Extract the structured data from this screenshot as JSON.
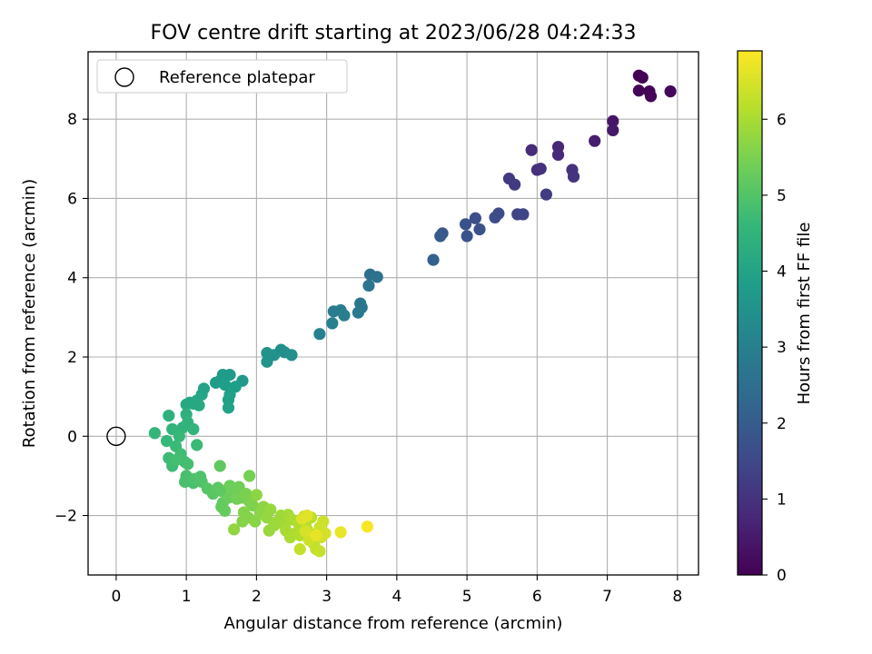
{
  "chart_data": {
    "type": "scatter",
    "title": "FOV centre drift starting at 2023/06/28 04:24:33",
    "xlabel": "Angular distance from reference (arcmin)",
    "ylabel": "Rotation from reference (arcmin)",
    "xlim": [
      -0.4,
      8.3
    ],
    "ylim": [
      -3.5,
      9.7
    ],
    "xticks": [
      0,
      1,
      2,
      3,
      4,
      5,
      6,
      7,
      8
    ],
    "yticks": [
      -2,
      0,
      2,
      4,
      6,
      8
    ],
    "ytick_labels": [
      "−2",
      "0",
      "2",
      "4",
      "6",
      "8"
    ],
    "grid": true,
    "legend": {
      "position": "top-left",
      "entries": [
        "Reference platepar"
      ]
    },
    "colorbar": {
      "label": "Hours from first FF file",
      "colormap": "viridis",
      "range": [
        0,
        6.9
      ],
      "ticks": [
        0,
        1,
        2,
        3,
        4,
        5,
        6
      ]
    },
    "reference_point": {
      "x": 0,
      "y": 0,
      "name": "Reference platepar"
    },
    "points": [
      [
        7.45,
        9.1,
        0.0
      ],
      [
        7.5,
        9.05,
        0.02
      ],
      [
        7.45,
        8.72,
        0.05
      ],
      [
        7.6,
        8.7,
        0.08
      ],
      [
        7.62,
        8.58,
        0.1
      ],
      [
        7.9,
        8.7,
        0.12
      ],
      [
        7.08,
        7.95,
        0.4
      ],
      [
        7.08,
        7.72,
        0.45
      ],
      [
        6.82,
        7.45,
        0.55
      ],
      [
        6.3,
        7.3,
        0.75
      ],
      [
        6.3,
        7.1,
        0.8
      ],
      [
        5.92,
        7.22,
        0.85
      ],
      [
        6.0,
        6.72,
        0.95
      ],
      [
        6.05,
        6.75,
        0.98
      ],
      [
        6.5,
        6.72,
        1.0
      ],
      [
        6.52,
        6.55,
        1.05
      ],
      [
        5.6,
        6.5,
        1.15
      ],
      [
        5.68,
        6.35,
        1.2
      ],
      [
        6.13,
        6.1,
        1.25
      ],
      [
        5.72,
        5.6,
        1.4
      ],
      [
        5.8,
        5.6,
        1.45
      ],
      [
        5.45,
        5.62,
        1.55
      ],
      [
        5.4,
        5.52,
        1.6
      ],
      [
        5.12,
        5.5,
        1.65
      ],
      [
        5.18,
        5.22,
        1.7
      ],
      [
        4.98,
        5.35,
        1.75
      ],
      [
        5.0,
        5.05,
        1.8
      ],
      [
        4.65,
        5.12,
        1.9
      ],
      [
        4.62,
        5.05,
        1.95
      ],
      [
        4.52,
        4.45,
        2.1
      ],
      [
        3.62,
        4.08,
        2.55
      ],
      [
        3.72,
        4.02,
        2.6
      ],
      [
        3.6,
        3.8,
        2.65
      ],
      [
        3.48,
        3.35,
        2.75
      ],
      [
        3.5,
        3.25,
        2.78
      ],
      [
        3.45,
        3.12,
        2.8
      ],
      [
        3.1,
        3.15,
        2.9
      ],
      [
        3.2,
        3.18,
        2.92
      ],
      [
        3.25,
        3.05,
        2.95
      ],
      [
        3.08,
        2.85,
        3.0
      ],
      [
        2.9,
        2.58,
        3.05
      ],
      [
        2.4,
        2.12,
        3.4
      ],
      [
        2.35,
        2.18,
        3.42
      ],
      [
        2.5,
        2.05,
        3.45
      ],
      [
        2.25,
        2.05,
        3.48
      ],
      [
        2.15,
        2.1,
        3.5
      ],
      [
        2.15,
        1.88,
        3.52
      ],
      [
        1.8,
        1.4,
        3.7
      ],
      [
        1.62,
        1.55,
        3.72
      ],
      [
        1.52,
        1.55,
        3.75
      ],
      [
        1.48,
        1.4,
        3.78
      ],
      [
        1.42,
        1.35,
        3.8
      ],
      [
        1.55,
        1.3,
        3.82
      ],
      [
        1.7,
        1.25,
        3.85
      ],
      [
        1.62,
        1.05,
        3.88
      ],
      [
        1.6,
        0.92,
        3.92
      ],
      [
        1.6,
        0.72,
        3.95
      ],
      [
        1.25,
        1.2,
        4.0
      ],
      [
        1.22,
        1.05,
        4.05
      ],
      [
        1.15,
        0.9,
        4.08
      ],
      [
        1.1,
        0.82,
        4.1
      ],
      [
        1.05,
        0.85,
        4.12
      ],
      [
        1.0,
        0.8,
        4.15
      ],
      [
        1.18,
        0.78,
        4.18
      ],
      [
        1.0,
        0.55,
        4.35
      ],
      [
        0.75,
        0.52,
        4.4
      ],
      [
        1.02,
        0.35,
        4.45
      ],
      [
        0.95,
        0.22,
        4.48
      ],
      [
        0.8,
        0.18,
        4.5
      ],
      [
        1.1,
        0.18,
        4.52
      ],
      [
        0.55,
        0.08,
        4.55
      ],
      [
        0.72,
        -0.12,
        4.6
      ],
      [
        0.9,
        0.0,
        4.62
      ],
      [
        0.85,
        -0.25,
        4.65
      ],
      [
        1.15,
        -0.22,
        4.68
      ],
      [
        0.75,
        -0.55,
        4.7
      ],
      [
        0.8,
        -0.75,
        4.72
      ],
      [
        0.92,
        -0.45,
        4.75
      ],
      [
        0.98,
        -0.65,
        4.78
      ],
      [
        1.02,
        -0.7,
        4.8
      ],
      [
        0.85,
        -0.6,
        4.82
      ],
      [
        1.0,
        -1.0,
        4.85
      ],
      [
        0.98,
        -1.15,
        4.88
      ],
      [
        1.1,
        -1.18,
        4.9
      ],
      [
        1.12,
        -1.08,
        4.92
      ],
      [
        1.2,
        -1.02,
        4.95
      ],
      [
        1.22,
        -1.15,
        4.98
      ],
      [
        1.3,
        -1.32,
        5.05
      ],
      [
        1.38,
        -1.45,
        5.1
      ],
      [
        1.45,
        -1.3,
        5.12
      ],
      [
        1.5,
        -1.38,
        5.15
      ],
      [
        1.48,
        -0.75,
        5.18
      ],
      [
        1.52,
        -1.68,
        5.2
      ],
      [
        1.5,
        -1.78,
        5.22
      ],
      [
        1.55,
        -1.88,
        5.25
      ],
      [
        1.6,
        -1.55,
        5.3
      ],
      [
        1.62,
        -1.25,
        5.32
      ],
      [
        1.7,
        -1.4,
        5.35
      ],
      [
        1.75,
        -1.28,
        5.38
      ],
      [
        1.8,
        -1.55,
        5.4
      ],
      [
        1.72,
        -1.58,
        5.42
      ],
      [
        1.9,
        -1.0,
        5.45
      ],
      [
        1.85,
        -1.45,
        5.5
      ],
      [
        1.9,
        -1.65,
        5.52
      ],
      [
        1.95,
        -1.75,
        5.55
      ],
      [
        1.82,
        -1.92,
        5.58
      ],
      [
        1.88,
        -2.05,
        5.6
      ],
      [
        1.8,
        -2.15,
        5.62
      ],
      [
        1.98,
        -2.15,
        5.65
      ],
      [
        2.05,
        -1.95,
        5.68
      ],
      [
        2.0,
        -1.48,
        5.7
      ],
      [
        2.1,
        -1.78,
        5.72
      ],
      [
        1.68,
        -2.35,
        5.75
      ],
      [
        2.15,
        -2.05,
        5.78
      ],
      [
        2.2,
        -1.85,
        5.8
      ],
      [
        2.18,
        -2.38,
        5.82
      ],
      [
        2.25,
        -2.25,
        5.85
      ],
      [
        2.3,
        -2.15,
        5.88
      ],
      [
        2.35,
        -2.0,
        5.9
      ],
      [
        2.4,
        -2.25,
        5.92
      ],
      [
        2.45,
        -1.98,
        5.95
      ],
      [
        2.42,
        -2.38,
        5.98
      ],
      [
        2.5,
        -2.1,
        6.0
      ],
      [
        2.48,
        -2.55,
        6.02
      ],
      [
        2.55,
        -2.45,
        6.05
      ],
      [
        2.6,
        -2.2,
        6.08
      ],
      [
        2.62,
        -2.5,
        6.1
      ],
      [
        2.68,
        -2.02,
        6.12
      ],
      [
        2.7,
        -2.2,
        6.15
      ],
      [
        2.72,
        -2.35,
        6.18
      ],
      [
        2.78,
        -2.05,
        6.2
      ],
      [
        2.8,
        -2.48,
        6.22
      ],
      [
        2.82,
        -2.72,
        6.25
      ],
      [
        2.85,
        -2.85,
        6.28
      ],
      [
        2.62,
        -2.85,
        6.3
      ],
      [
        2.9,
        -2.9,
        6.32
      ],
      [
        2.9,
        -2.3,
        6.35
      ],
      [
        2.95,
        -2.15,
        6.38
      ],
      [
        2.75,
        -2.62,
        6.4
      ],
      [
        2.92,
        -2.55,
        6.42
      ],
      [
        2.98,
        -2.45,
        6.45
      ],
      [
        2.7,
        -2.4,
        6.48
      ],
      [
        2.65,
        -2.08,
        6.55
      ],
      [
        2.72,
        -2.0,
        6.6
      ],
      [
        2.85,
        -2.5,
        6.65
      ],
      [
        3.2,
        -2.42,
        6.7
      ],
      [
        3.58,
        -2.28,
        6.85
      ]
    ]
  }
}
